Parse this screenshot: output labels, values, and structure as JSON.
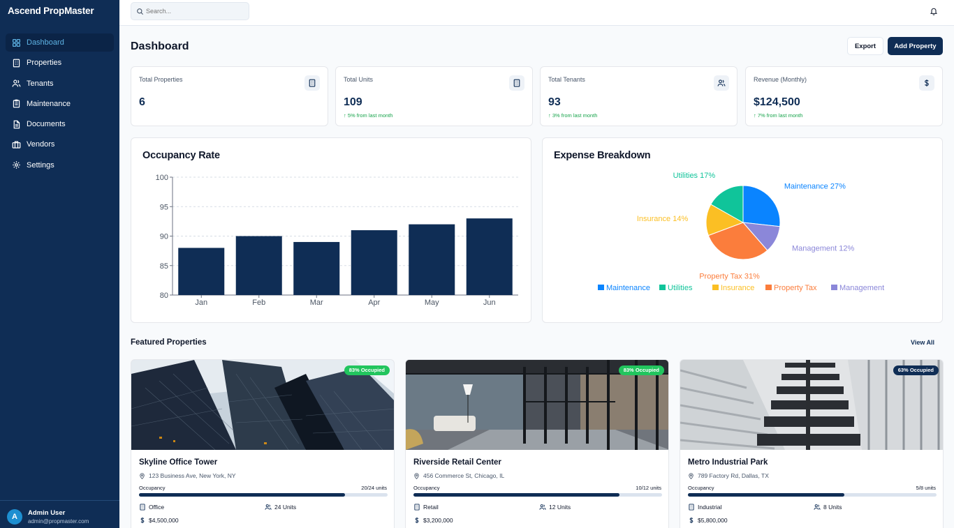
{
  "app": {
    "title": "Ascend PropMaster"
  },
  "sidebar": {
    "items": [
      {
        "label": "Dashboard",
        "icon": "grid-icon",
        "active": true
      },
      {
        "label": "Properties",
        "icon": "building-icon"
      },
      {
        "label": "Tenants",
        "icon": "users-icon"
      },
      {
        "label": "Maintenance",
        "icon": "clipboard-icon"
      },
      {
        "label": "Documents",
        "icon": "document-icon"
      },
      {
        "label": "Vendors",
        "icon": "briefcase-icon"
      },
      {
        "label": "Settings",
        "icon": "gear-icon"
      }
    ],
    "user": {
      "initial": "A",
      "name": "Admin User",
      "email": "admin@propmaster.com"
    }
  },
  "topbar": {
    "search_placeholder": "Search..."
  },
  "header": {
    "title": "Dashboard",
    "export_label": "Export",
    "add_label": "Add Property"
  },
  "stats": [
    {
      "label": "Total Properties",
      "value": "6",
      "change": "",
      "icon": "building-icon"
    },
    {
      "label": "Total Units",
      "value": "109",
      "change": "↑ 5% from last month",
      "icon": "building-icon"
    },
    {
      "label": "Total Tenants",
      "value": "93",
      "change": "↑ 3% from last month",
      "icon": "users-icon"
    },
    {
      "label": "Revenue (Monthly)",
      "value": "$124,500",
      "change": "↑ 7% from last month",
      "icon": "dollar-icon"
    }
  ],
  "colors": {
    "brand": "#0f2d55",
    "accent": "#5eb3e4",
    "success": "#16a34a",
    "occupied_badge": "#22c55e"
  },
  "chart_data": [
    {
      "type": "bar",
      "title": "Occupancy Rate",
      "categories": [
        "Jan",
        "Feb",
        "Mar",
        "Apr",
        "May",
        "Jun"
      ],
      "values": [
        88,
        90,
        89,
        91,
        92,
        93
      ],
      "ylim": [
        80,
        100
      ],
      "yticks": [
        80,
        85,
        90,
        95,
        100
      ],
      "xlabel": "",
      "ylabel": "",
      "grid": true,
      "color": "#0f2d55"
    },
    {
      "type": "pie",
      "title": "Expense Breakdown",
      "slices": [
        {
          "name": "Maintenance",
          "value": 27,
          "label": "Maintenance 27%",
          "color": "#0a84ff"
        },
        {
          "name": "Management",
          "value": 12,
          "label": "Management 12%",
          "color": "#8b87d9"
        },
        {
          "name": "Property Tax",
          "value": 31,
          "label": "Property Tax 31%",
          "color": "#fb7d3c"
        },
        {
          "name": "Insurance",
          "value": 14,
          "label": "Insurance 14%",
          "color": "#fbbf24"
        },
        {
          "name": "Utilities",
          "value": 17,
          "label": "Utilities 17%",
          "color": "#10c49a"
        }
      ],
      "legend_order": [
        "Maintenance",
        "Utilities",
        "Insurance",
        "Property Tax",
        "Management"
      ],
      "legend_position": "bottom"
    }
  ],
  "featured": {
    "title": "Featured Properties",
    "view_all": "View All",
    "properties": [
      {
        "name": "Skyline Office Tower",
        "address": "123 Business Ave, New York, NY",
        "badge": "83% Occupied",
        "badge_color": "#22c55e",
        "occupancy_label": "Occupancy",
        "units_text": "20/24 units",
        "occupancy": 0.83,
        "type": "Office",
        "units": "24 Units",
        "price": "$4,500,000",
        "image": "glass-skyscrapers"
      },
      {
        "name": "Riverside Retail Center",
        "address": "456 Commerce St, Chicago, IL",
        "badge": "83% Occupied",
        "badge_color": "#22c55e",
        "occupancy_label": "Occupancy",
        "units_text": "10/12 units",
        "occupancy": 0.83,
        "type": "Retail",
        "units": "12 Units",
        "price": "$3,200,000",
        "image": "glass-interior"
      },
      {
        "name": "Metro Industrial Park",
        "address": "789 Factory Rd, Dallas, TX",
        "badge": "63% Occupied",
        "badge_color": "#0f2d55",
        "occupancy_label": "Occupancy",
        "units_text": "5/8 units",
        "occupancy": 0.63,
        "type": "Industrial",
        "units": "8 Units",
        "price": "$5,800,000",
        "image": "building-facade"
      }
    ]
  }
}
